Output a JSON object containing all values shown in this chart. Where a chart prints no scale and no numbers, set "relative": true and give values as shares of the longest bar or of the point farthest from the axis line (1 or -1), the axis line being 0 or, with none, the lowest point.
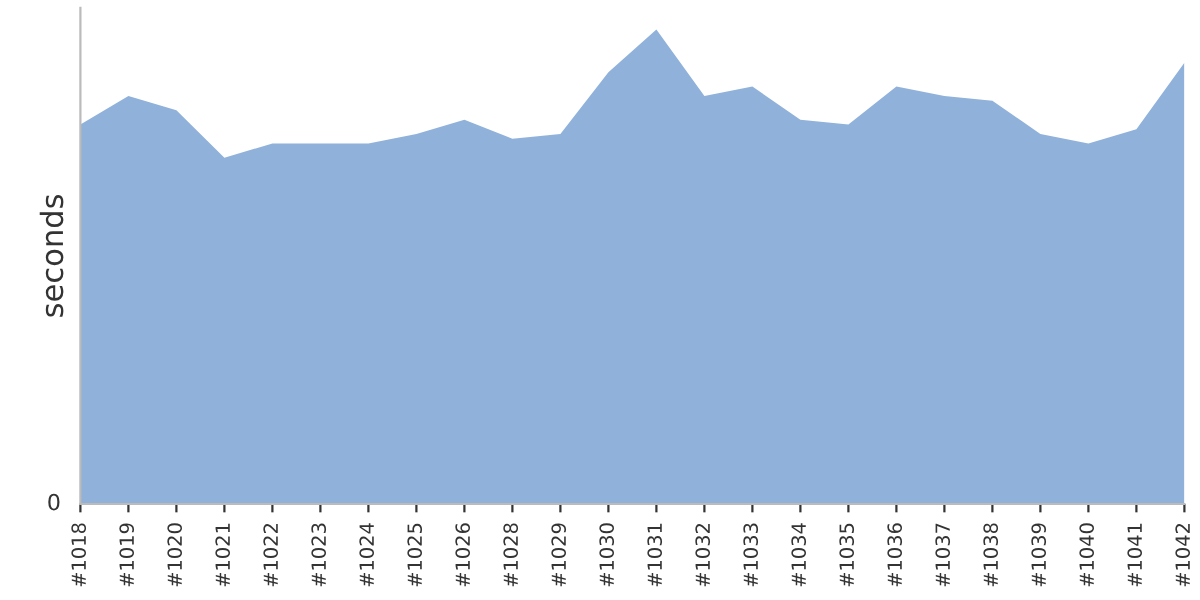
{
  "chart_data": {
    "type": "area",
    "ylabel": "seconds",
    "relative": true,
    "annotations": [
      "0"
    ],
    "grid": false,
    "legend": false,
    "categories": [
      "#1018",
      "#1019",
      "#1020",
      "#1021",
      "#1022",
      "#1023",
      "#1024",
      "#1025",
      "#1026",
      "#1028",
      "#1029",
      "#1030",
      "#1031",
      "#1032",
      "#1033",
      "#1034",
      "#1035",
      "#1036",
      "#1037",
      "#1038",
      "#1039",
      "#1040",
      "#1041",
      "#1042"
    ],
    "series": [
      {
        "color": "#8fb1da",
        "values": [
          0.8,
          0.86,
          0.83,
          0.73,
          0.76,
          0.76,
          0.76,
          0.78,
          0.81,
          0.77,
          0.78,
          0.91,
          1.0,
          0.86,
          0.88,
          0.81,
          0.8,
          0.88,
          0.86,
          0.85,
          0.78,
          0.76,
          0.79,
          0.93
        ]
      }
    ]
  }
}
